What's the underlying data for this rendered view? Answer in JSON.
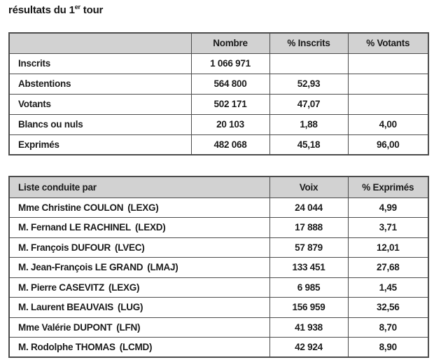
{
  "colors": {
    "header_bg": "#d2d2d2",
    "border": "#4c4c4c",
    "text": "#1a1a1a"
  },
  "title": {
    "prefix": "résultats du 1",
    "superscript": "er",
    "suffix": " tour"
  },
  "participation_table": {
    "headers": {
      "col0": "",
      "nombre": "Nombre",
      "pct_inscrits": "% Inscrits",
      "pct_votants": "% Votants"
    },
    "rows": [
      {
        "label": "Inscrits",
        "nombre": "1 066 971",
        "pct_inscrits": "",
        "pct_votants": ""
      },
      {
        "label": "Abstentions",
        "nombre": "564 800",
        "pct_inscrits": "52,93",
        "pct_votants": ""
      },
      {
        "label": "Votants",
        "nombre": "502 171",
        "pct_inscrits": "47,07",
        "pct_votants": ""
      },
      {
        "label": "Blancs ou nuls",
        "nombre": "20 103",
        "pct_inscrits": "1,88",
        "pct_votants": "4,00"
      },
      {
        "label": "Exprimés",
        "nombre": "482 068",
        "pct_inscrits": "45,18",
        "pct_votants": "96,00"
      }
    ]
  },
  "results_table": {
    "headers": {
      "liste": "Liste conduite par",
      "voix": "Voix",
      "pct_exprimes": "% Exprimés"
    },
    "rows": [
      {
        "name": "Mme Christine COULON",
        "party": "(LEXG)",
        "voix": "24 044",
        "pct": "4,99"
      },
      {
        "name": "M. Fernand LE RACHINEL",
        "party": "(LEXD)",
        "voix": "17 888",
        "pct": "3,71"
      },
      {
        "name": "M. François DUFOUR",
        "party": "(LVEC)",
        "voix": "57 879",
        "pct": "12,01"
      },
      {
        "name": "M. Jean-François LE GRAND",
        "party": "(LMAJ)",
        "voix": "133 451",
        "pct": "27,68"
      },
      {
        "name": "M. Pierre CASEVITZ",
        "party": "(LEXG)",
        "voix": "6 985",
        "pct": "1,45"
      },
      {
        "name": "M. Laurent BEAUVAIS",
        "party": "(LUG)",
        "voix": "156 959",
        "pct": "32,56"
      },
      {
        "name": "Mme Valérie DUPONT",
        "party": "(LFN)",
        "voix": "41 938",
        "pct": "8,70"
      },
      {
        "name": "M. Rodolphe THOMAS",
        "party": "(LCMD)",
        "voix": "42 924",
        "pct": "8,90"
      }
    ]
  }
}
